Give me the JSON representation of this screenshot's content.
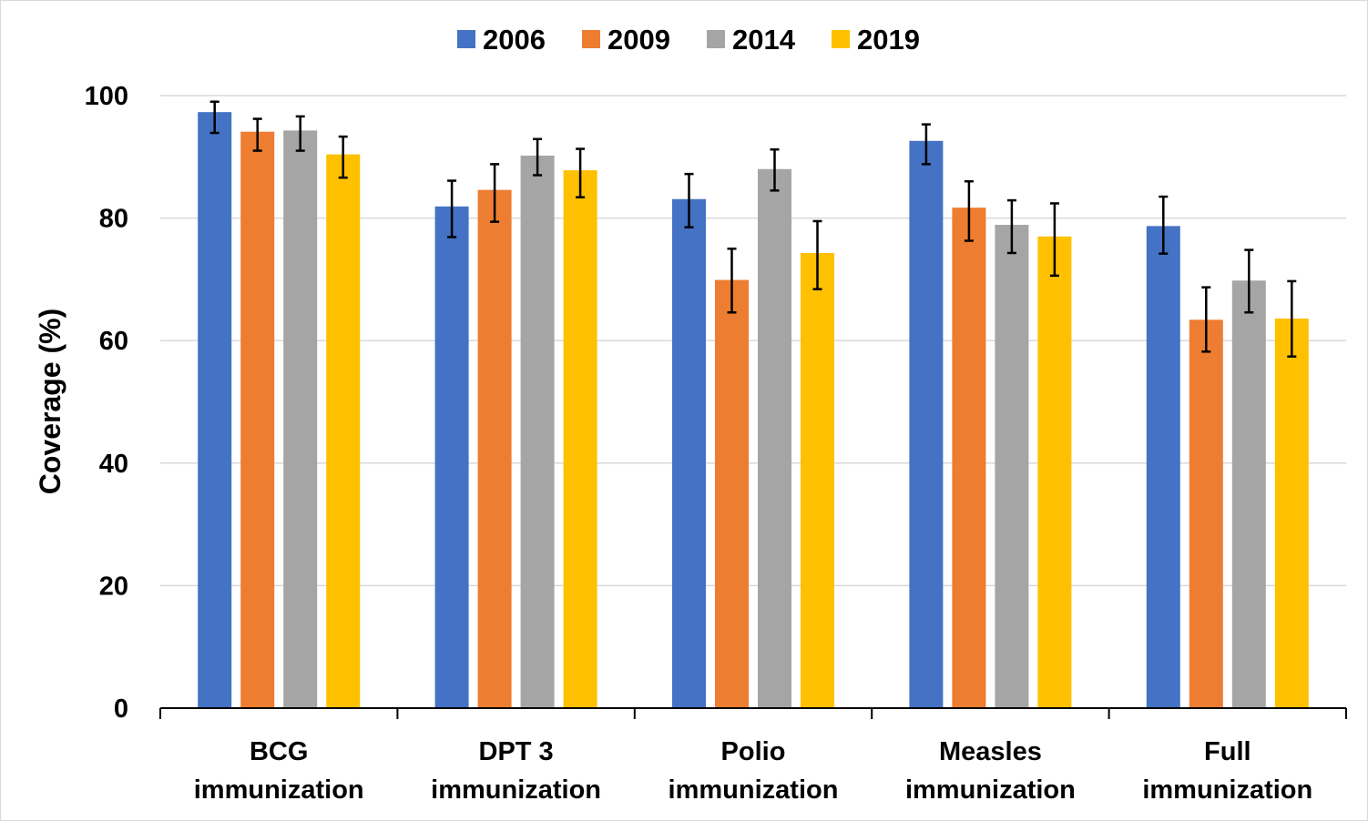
{
  "chart_data": {
    "type": "bar",
    "title": "",
    "xlabel": "",
    "ylabel": "Coverage (%)",
    "ylim": [
      0,
      100
    ],
    "yticks": [
      0,
      20,
      40,
      60,
      80,
      100
    ],
    "grid": true,
    "legend_position": "top",
    "categories": [
      [
        "BCG",
        "immunization"
      ],
      [
        "DPT 3",
        "immunization"
      ],
      [
        "Polio",
        "immunization"
      ],
      [
        "Measles",
        "immunization"
      ],
      [
        "Full",
        "immunization"
      ]
    ],
    "series": [
      {
        "name": "2006",
        "color": "#4472C4",
        "values": [
          97.3,
          81.9,
          83.1,
          92.6,
          78.7
        ],
        "err_low": [
          93.9,
          76.9,
          78.5,
          88.8,
          74.2
        ],
        "err_high": [
          99.0,
          86.1,
          87.2,
          95.3,
          83.5
        ]
      },
      {
        "name": "2009",
        "color": "#ED7D31",
        "values": [
          94.1,
          84.6,
          69.9,
          81.7,
          63.4
        ],
        "err_low": [
          91.0,
          79.4,
          64.6,
          76.3,
          58.2
        ],
        "err_high": [
          96.2,
          88.8,
          75.0,
          86.0,
          68.7
        ]
      },
      {
        "name": "2014",
        "color": "#A5A5A5",
        "values": [
          94.3,
          90.2,
          88.0,
          78.9,
          69.8
        ],
        "err_low": [
          91.0,
          87.0,
          84.5,
          74.3,
          64.6
        ],
        "err_high": [
          96.6,
          92.9,
          91.2,
          82.9,
          74.8
        ]
      },
      {
        "name": "2019",
        "color": "#FFC000",
        "values": [
          90.4,
          87.8,
          74.3,
          77.0,
          63.6
        ],
        "err_low": [
          86.6,
          83.4,
          68.4,
          70.6,
          57.4
        ],
        "err_high": [
          93.3,
          91.3,
          79.5,
          82.4,
          69.7
        ]
      }
    ]
  }
}
